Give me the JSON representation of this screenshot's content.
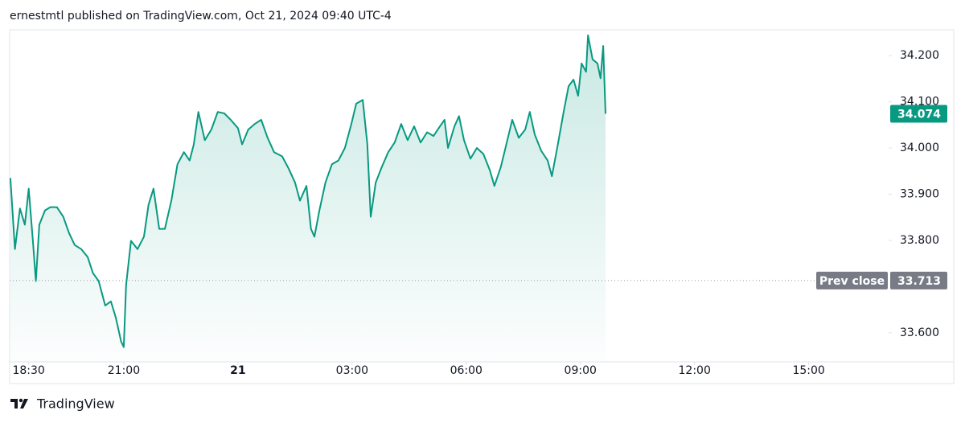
{
  "header": "ernestmtl published on TradingView.com, Oct 21, 2024 09:40 UTC-4",
  "footer": "TradingView",
  "chart_data": {
    "type": "line",
    "color": "#089981",
    "x": [
      -5.98,
      -5.86,
      -5.73,
      -5.6,
      -5.5,
      -5.39,
      -5.31,
      -5.22,
      -5.07,
      -4.93,
      -4.76,
      -4.59,
      -4.44,
      -4.29,
      -4.12,
      -3.95,
      -3.81,
      -3.66,
      -3.49,
      -3.34,
      -3.21,
      -3.07,
      -3.0,
      -2.94,
      -2.81,
      -2.64,
      -2.47,
      -2.35,
      -2.22,
      -2.07,
      -1.92,
      -1.75,
      -1.59,
      -1.42,
      -1.27,
      -1.16,
      -1.04,
      -0.87,
      -0.7,
      -0.53,
      -0.36,
      -0.19,
      0.0,
      0.11,
      0.27,
      0.44,
      0.61,
      0.78,
      0.95,
      1.16,
      1.33,
      1.5,
      1.63,
      1.8,
      1.92,
      2.01,
      2.14,
      2.3,
      2.47,
      2.64,
      2.81,
      2.98,
      3.11,
      3.28,
      3.4,
      3.49,
      3.62,
      3.78,
      3.95,
      4.12,
      4.29,
      4.46,
      4.63,
      4.8,
      4.97,
      5.14,
      5.31,
      5.43,
      5.52,
      5.69,
      5.81,
      5.94,
      6.11,
      6.28,
      6.45,
      6.62,
      6.74,
      6.91,
      7.08,
      7.21,
      7.38,
      7.55,
      7.67,
      7.8,
      7.97,
      8.14,
      8.25,
      8.39,
      8.56,
      8.69,
      8.82,
      8.94,
      9.03,
      9.15,
      9.2,
      9.32,
      9.45,
      9.53,
      9.6,
      9.66
    ],
    "values": [
      33.935,
      33.781,
      33.869,
      33.834,
      33.912,
      33.799,
      33.712,
      33.834,
      33.865,
      33.872,
      33.872,
      33.851,
      33.816,
      33.79,
      33.781,
      33.764,
      33.729,
      33.712,
      33.659,
      33.668,
      33.633,
      33.581,
      33.569,
      33.703,
      33.799,
      33.781,
      33.808,
      33.877,
      33.912,
      33.825,
      33.825,
      33.886,
      33.965,
      33.991,
      33.973,
      34.008,
      34.078,
      34.017,
      34.04,
      34.078,
      34.075,
      34.061,
      34.043,
      34.008,
      34.04,
      34.052,
      34.061,
      34.022,
      33.991,
      33.982,
      33.956,
      33.925,
      33.886,
      33.918,
      33.825,
      33.808,
      33.865,
      33.925,
      33.965,
      33.973,
      34.0,
      34.052,
      34.096,
      34.104,
      34.008,
      33.851,
      33.925,
      33.959,
      33.991,
      34.012,
      34.052,
      34.017,
      34.047,
      34.012,
      34.034,
      34.026,
      34.047,
      34.061,
      34.0,
      34.047,
      34.069,
      34.017,
      33.977,
      34.0,
      33.987,
      33.952,
      33.918,
      33.959,
      34.017,
      34.061,
      34.022,
      34.04,
      34.078,
      34.029,
      33.994,
      33.973,
      33.939,
      34.0,
      34.078,
      34.134,
      34.148,
      34.113,
      34.183,
      34.165,
      34.244,
      34.192,
      34.183,
      34.151,
      34.221,
      34.074
    ],
    "last_price": 34.074,
    "prev_close": {
      "label": "Prev close",
      "value": 33.713
    },
    "xlim": [
      -6,
      17.1
    ],
    "xticks": [
      {
        "value": -5.5,
        "label": "18:30"
      },
      {
        "value": -3,
        "label": "21:00"
      },
      {
        "value": 0,
        "label": "21"
      },
      {
        "value": 3,
        "label": "03:00"
      },
      {
        "value": 6,
        "label": "06:00"
      },
      {
        "value": 9,
        "label": "09:00"
      },
      {
        "value": 12,
        "label": "12:00"
      },
      {
        "value": 15,
        "label": "15:00"
      }
    ],
    "ylim": [
      33.537,
      34.256
    ],
    "yticks": [
      {
        "value": 33.6,
        "label": "33.600"
      },
      {
        "value": 33.8,
        "label": "33.800"
      },
      {
        "value": 33.9,
        "label": "33.900"
      },
      {
        "value": 34.0,
        "label": "34.000"
      },
      {
        "value": 34.1,
        "label": "34.100"
      },
      {
        "value": 34.2,
        "label": "34.200"
      }
    ]
  }
}
